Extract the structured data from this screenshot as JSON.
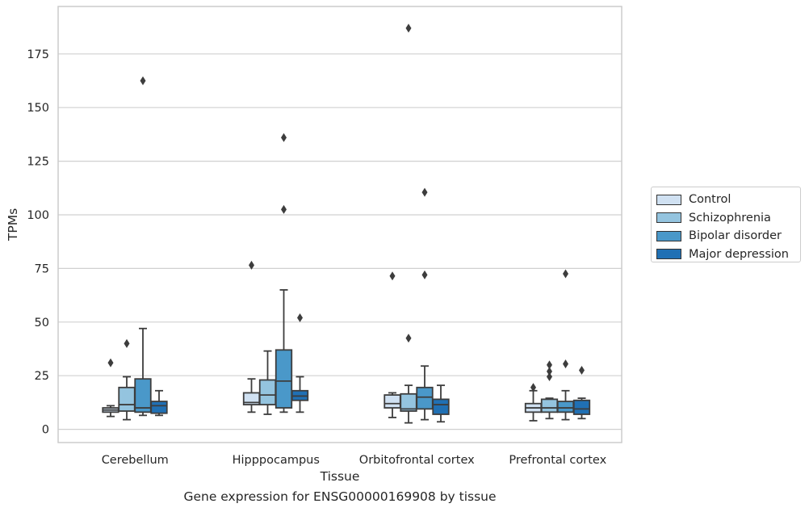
{
  "chart_data": {
    "type": "box",
    "title": "",
    "caption": "Gene expression for ENSG00000169908 by tissue",
    "xlabel": "Tissue",
    "ylabel": "TPMs",
    "ylim": [
      -6,
      197
    ],
    "yticks": [
      0,
      25,
      50,
      75,
      100,
      125,
      150,
      175
    ],
    "grid": "horizontal",
    "legend_position": "right",
    "categories": [
      "Cerebellum",
      "Hipppocampus",
      "Orbitofrontal cortex",
      "Prefrontal cortex"
    ],
    "series": [
      {
        "name": "Control",
        "color": "#d0e1f2",
        "boxes": [
          {
            "whisker_low": 6,
            "q1": 8,
            "median": 9,
            "q3": 10,
            "whisker_high": 11,
            "outliers": [
              31
            ]
          },
          {
            "whisker_low": 8,
            "q1": 11.5,
            "median": 12.5,
            "q3": 17,
            "whisker_high": 23.5,
            "outliers": [
              76.5
            ]
          },
          {
            "whisker_low": 5.5,
            "q1": 10,
            "median": 12,
            "q3": 16,
            "whisker_high": 17,
            "outliers": [
              71.5
            ]
          },
          {
            "whisker_low": 4,
            "q1": 8,
            "median": 10,
            "q3": 12,
            "whisker_high": 18,
            "outliers": [
              19.5
            ]
          }
        ]
      },
      {
        "name": "Schizophrenia",
        "color": "#94c4df",
        "boxes": [
          {
            "whisker_low": 4.5,
            "q1": 8.5,
            "median": 11.5,
            "q3": 19.5,
            "whisker_high": 24.5,
            "outliers": [
              40
            ]
          },
          {
            "whisker_low": 7,
            "q1": 11.5,
            "median": 16,
            "q3": 23,
            "whisker_high": 36.5,
            "outliers": []
          },
          {
            "whisker_low": 3,
            "q1": 8.5,
            "median": 9.5,
            "q3": 16.5,
            "whisker_high": 20.5,
            "outliers": [
              42.5,
              187
            ]
          },
          {
            "whisker_low": 5,
            "q1": 8,
            "median": 10,
            "q3": 14,
            "whisker_high": 14.5,
            "outliers": [
              24.5,
              27,
              30
            ]
          }
        ]
      },
      {
        "name": "Bipolar disorder",
        "color": "#4a98c9",
        "boxes": [
          {
            "whisker_low": 6.5,
            "q1": 8,
            "median": 10,
            "q3": 23.5,
            "whisker_high": 47,
            "outliers": [
              162.5
            ]
          },
          {
            "whisker_low": 8,
            "q1": 10,
            "median": 22.5,
            "q3": 37,
            "whisker_high": 65,
            "outliers": [
              102.5,
              136
            ]
          },
          {
            "whisker_low": 4.5,
            "q1": 9.5,
            "median": 15,
            "q3": 19.5,
            "whisker_high": 29.5,
            "outliers": [
              72,
              110.5
            ]
          },
          {
            "whisker_low": 4.5,
            "q1": 8,
            "median": 10,
            "q3": 13,
            "whisker_high": 18,
            "outliers": [
              30.5,
              72.5
            ]
          }
        ]
      },
      {
        "name": "Major depression",
        "color": "#2070b4",
        "boxes": [
          {
            "whisker_low": 6.5,
            "q1": 7.5,
            "median": 11,
            "q3": 13,
            "whisker_high": 18,
            "outliers": []
          },
          {
            "whisker_low": 8,
            "q1": 13.5,
            "median": 15.5,
            "q3": 18,
            "whisker_high": 24.5,
            "outliers": [
              52
            ]
          },
          {
            "whisker_low": 3.5,
            "q1": 7,
            "median": 11.5,
            "q3": 14,
            "whisker_high": 20.5,
            "outliers": []
          },
          {
            "whisker_low": 5,
            "q1": 7,
            "median": 9.5,
            "q3": 13.5,
            "whisker_high": 14.5,
            "outliers": [
              27.5
            ]
          }
        ]
      }
    ]
  }
}
